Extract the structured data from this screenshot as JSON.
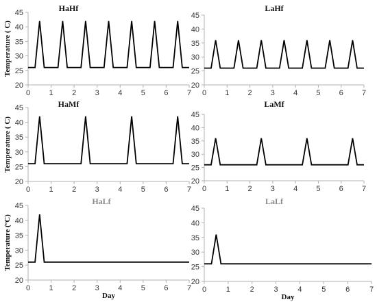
{
  "chart_data": [
    {
      "type": "line",
      "title": "HaHf",
      "title_color": "#111111",
      "xlabel": "",
      "ylabel": "Temperature ( C)",
      "xlim": [
        0,
        7
      ],
      "ylim": [
        20,
        45
      ],
      "grid": false,
      "x_ticks": [
        0,
        1,
        2,
        3,
        4,
        5,
        6,
        7
      ],
      "y_ticks": [
        20,
        25,
        30,
        35,
        40,
        45
      ],
      "series": [
        {
          "x": [
            0,
            0.3,
            0.5,
            0.7,
            1.3,
            1.5,
            1.7,
            2.3,
            2.5,
            2.7,
            3.3,
            3.5,
            3.7,
            4.3,
            4.5,
            4.7,
            5.3,
            5.5,
            5.7,
            6.3,
            6.5,
            6.7,
            7
          ],
          "y": [
            26,
            26,
            42,
            26,
            26,
            42,
            26,
            26,
            42,
            26,
            26,
            42,
            26,
            26,
            42,
            26,
            26,
            42,
            26,
            26,
            42,
            26,
            26
          ]
        }
      ]
    },
    {
      "type": "line",
      "title": "LaHf",
      "title_color": "#111111",
      "xlabel": "",
      "ylabel": "",
      "xlim": [
        0,
        7
      ],
      "ylim": [
        20,
        45
      ],
      "grid": false,
      "x_ticks": [
        0,
        1,
        2,
        3,
        4,
        5,
        6,
        7
      ],
      "y_ticks": [
        20,
        25,
        30,
        35,
        40,
        45
      ],
      "series": [
        {
          "x": [
            0,
            0.3,
            0.5,
            0.7,
            1.3,
            1.5,
            1.7,
            2.3,
            2.5,
            2.7,
            3.3,
            3.5,
            3.7,
            4.3,
            4.5,
            4.7,
            5.3,
            5.5,
            5.7,
            6.3,
            6.5,
            6.7,
            7
          ],
          "y": [
            26,
            26,
            36,
            26,
            26,
            36,
            26,
            26,
            36,
            26,
            26,
            36,
            26,
            26,
            36,
            26,
            26,
            36,
            26,
            26,
            36,
            26,
            26
          ]
        }
      ]
    },
    {
      "type": "line",
      "title": "HaMf",
      "title_color": "#111111",
      "xlabel": "",
      "ylabel": "Temperature ( C)",
      "xlim": [
        0,
        7
      ],
      "ylim": [
        20,
        45
      ],
      "grid": false,
      "x_ticks": [
        0,
        1,
        2,
        3,
        4,
        5,
        6,
        7
      ],
      "y_ticks": [
        20,
        25,
        30,
        35,
        40,
        45
      ],
      "series": [
        {
          "x": [
            0,
            0.3,
            0.5,
            0.7,
            2.3,
            2.5,
            2.7,
            4.3,
            4.5,
            4.7,
            6.3,
            6.5,
            6.7,
            7
          ],
          "y": [
            26,
            26,
            42,
            26,
            26,
            42,
            26,
            26,
            42,
            26,
            26,
            42,
            26,
            26
          ]
        }
      ]
    },
    {
      "type": "line",
      "title": "LaMf",
      "title_color": "#111111",
      "xlabel": "",
      "ylabel": "",
      "xlim": [
        0,
        7
      ],
      "ylim": [
        20,
        45
      ],
      "grid": false,
      "x_ticks": [
        0,
        1,
        2,
        3,
        4,
        5,
        6,
        7
      ],
      "y_ticks": [
        20,
        25,
        30,
        35,
        40,
        45
      ],
      "series": [
        {
          "x": [
            0,
            0.3,
            0.5,
            0.7,
            2.3,
            2.5,
            2.7,
            4.3,
            4.5,
            4.7,
            6.3,
            6.5,
            6.7,
            7
          ],
          "y": [
            26,
            26,
            36,
            26,
            26,
            36,
            26,
            26,
            36,
            26,
            26,
            36,
            26,
            26
          ]
        }
      ]
    },
    {
      "type": "line",
      "title": "HaLf",
      "title_color": "#8a8a8a",
      "xlabel": "Day",
      "ylabel": "Temperature (ºC)",
      "xlim": [
        0,
        7
      ],
      "ylim": [
        20,
        45
      ],
      "grid": false,
      "x_ticks": [
        0,
        1,
        2,
        3,
        4,
        5,
        6,
        7
      ],
      "y_ticks": [
        20,
        25,
        30,
        35,
        40,
        45
      ],
      "series": [
        {
          "x": [
            0,
            0.3,
            0.5,
            0.7,
            7
          ],
          "y": [
            26,
            26,
            42,
            26,
            26
          ]
        }
      ]
    },
    {
      "type": "line",
      "title": "LaLf",
      "title_color": "#8a8a8a",
      "xlabel": "Day",
      "ylabel": "",
      "xlim": [
        0,
        7
      ],
      "ylim": [
        20,
        45
      ],
      "grid": false,
      "x_ticks": [
        0,
        1,
        2,
        3,
        4,
        5,
        6,
        7
      ],
      "y_ticks": [
        20,
        25,
        30,
        35,
        40,
        45
      ],
      "series": [
        {
          "x": [
            0,
            0.3,
            0.5,
            0.7,
            7
          ],
          "y": [
            26,
            26,
            36,
            26,
            26
          ]
        }
      ]
    }
  ]
}
